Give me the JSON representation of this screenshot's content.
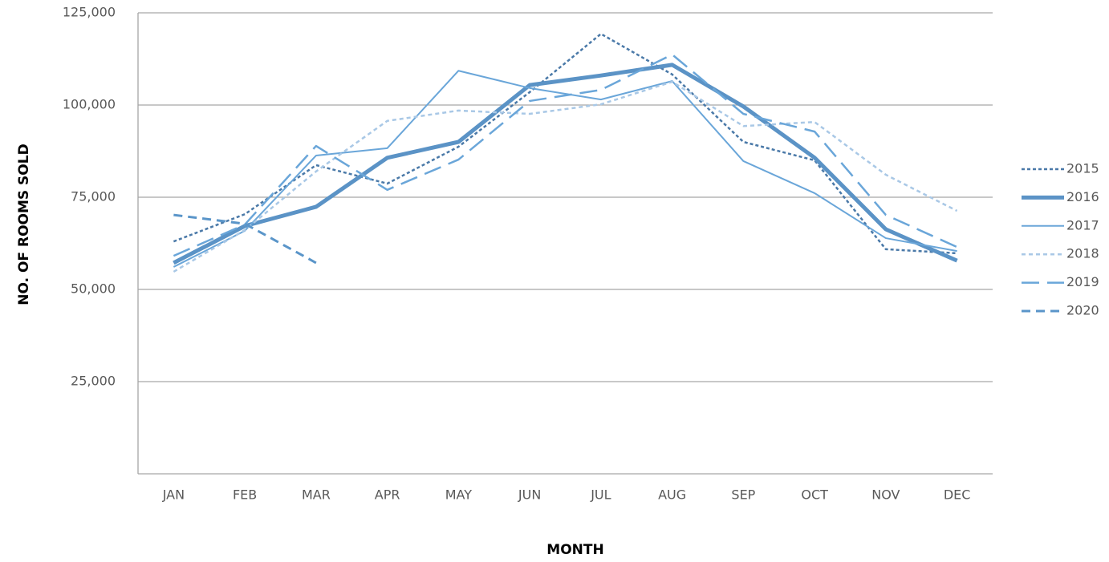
{
  "chart_data": {
    "type": "line",
    "x_label": "MONTH",
    "y_label": "NO. OF ROOMS SOLD",
    "categories": [
      "JAN",
      "FEB",
      "MAR",
      "APR",
      "MAY",
      "JUN",
      "JUL",
      "AUG",
      "SEP",
      "OCT",
      "NOV",
      "DEC"
    ],
    "series": [
      {
        "name": "2015",
        "color": "#4a79a8",
        "style": "dotted",
        "values": [
          63000,
          70400,
          83700,
          78700,
          88700,
          103500,
          119300,
          108300,
          90000,
          85000,
          60900,
          59800
        ]
      },
      {
        "name": "2016",
        "color": "#5b93c6",
        "style": "thick",
        "values": [
          57200,
          67200,
          72400,
          85700,
          90000,
          105400,
          108000,
          110900,
          99600,
          85700,
          66300,
          57800
        ]
      },
      {
        "name": "2017",
        "color": "#6aa6d9",
        "style": "solid",
        "values": [
          56100,
          65900,
          86300,
          88300,
          109300,
          104600,
          101500,
          106500,
          84800,
          76100,
          63900,
          60400
        ]
      },
      {
        "name": "2018",
        "color": "#a9c8e6",
        "style": "short-dash",
        "values": [
          54800,
          66100,
          82000,
          95700,
          98500,
          97600,
          100200,
          106300,
          94300,
          95400,
          81100,
          71300
        ]
      },
      {
        "name": "2019",
        "color": "#6aa6d9",
        "style": "long-dash",
        "values": [
          59100,
          67600,
          88900,
          77000,
          85200,
          101100,
          104100,
          113700,
          97600,
          92800,
          70200,
          61500
        ]
      },
      {
        "name": "2020",
        "color": "#5a95c9",
        "style": "dash",
        "values": [
          70200,
          67800,
          57200,
          null,
          null,
          null,
          null,
          null,
          null,
          null,
          null,
          null
        ]
      }
    ],
    "ylim": [
      0,
      125000
    ],
    "yticks": [
      {
        "value": 25000,
        "label": "25,000"
      },
      {
        "value": 50000,
        "label": "50,000"
      },
      {
        "value": 75000,
        "label": "75,000"
      },
      {
        "value": 100000,
        "label": "100,000"
      },
      {
        "value": 125000,
        "label": "125,000"
      }
    ],
    "grid": true,
    "legend": "right"
  }
}
